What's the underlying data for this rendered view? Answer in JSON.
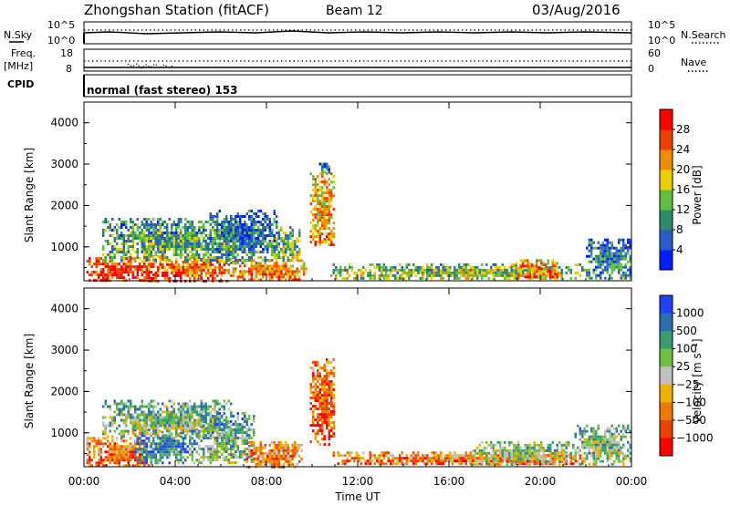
{
  "header": {
    "station": "Zhongshan Station (fitACF)",
    "beam": "Beam 12",
    "date": "03/Aug/2016"
  },
  "noise_panel": {
    "left_label": "N.Sky",
    "left_ticks": [
      "10^5",
      "10^0"
    ],
    "right_ticks": [
      "10^5",
      "10^0"
    ],
    "right_label": "N.Search"
  },
  "freq_panel": {
    "left_label_line1": "Freq.",
    "left_label_line2": "[MHz]",
    "left_ticks": [
      "18",
      "8"
    ],
    "right_ticks": [
      "60",
      "0"
    ],
    "right_label": "Nave"
  },
  "cpid": {
    "label": "CPID",
    "text": "normal (fast stereo) 153"
  },
  "chart_data": [
    {
      "type": "heatmap",
      "quantity": "Power",
      "x_range_hours": [
        0,
        24
      ],
      "y_range_km": [
        180,
        4500
      ],
      "ylabel": "Slant Range [km]",
      "yticks": [
        "1000",
        "2000",
        "3000",
        "4000"
      ],
      "colorbar": {
        "label": "Power [dB]",
        "ticks": [
          "4",
          "8",
          "12",
          "16",
          "20",
          "24",
          "28"
        ],
        "colors": [
          "#0020ff",
          "#2a5bc8",
          "#2f8a6a",
          "#60c040",
          "#e8d000",
          "#f08a00",
          "#f04000",
          "#ff0000"
        ],
        "range": [
          0,
          32
        ]
      },
      "regions": [
        {
          "x0": 0.1,
          "x1": 3.2,
          "y0": 200,
          "y1": 750,
          "level": 0.85
        },
        {
          "x0": 2.8,
          "x1": 6.6,
          "y0": 200,
          "y1": 800,
          "level": 0.75
        },
        {
          "x0": 0.8,
          "x1": 6.8,
          "y0": 700,
          "y1": 1700,
          "level": 0.35
        },
        {
          "x0": 5.5,
          "x1": 8.5,
          "y0": 600,
          "y1": 1900,
          "level": 0.25
        },
        {
          "x0": 6.5,
          "x1": 9.8,
          "y0": 200,
          "y1": 700,
          "level": 0.7
        },
        {
          "x0": 8.2,
          "x1": 9.5,
          "y0": 700,
          "y1": 1500,
          "level": 0.4
        },
        {
          "x0": 9.9,
          "x1": 11.0,
          "y0": 1000,
          "y1": 2800,
          "level": 0.65
        },
        {
          "x0": 10.3,
          "x1": 10.9,
          "y0": 2800,
          "y1": 3100,
          "level": 0.3
        },
        {
          "x0": 10.8,
          "x1": 22.0,
          "y0": 250,
          "y1": 600,
          "level": 0.45
        },
        {
          "x0": 18.8,
          "x1": 20.8,
          "y0": 250,
          "y1": 700,
          "level": 0.7
        },
        {
          "x0": 22.0,
          "x1": 24.0,
          "y0": 250,
          "y1": 1200,
          "level": 0.25
        }
      ]
    },
    {
      "type": "heatmap",
      "quantity": "Velocity",
      "x_range_hours": [
        0,
        24
      ],
      "y_range_km": [
        180,
        4500
      ],
      "ylabel": "Slant Range [km]",
      "yticks": [
        "1000",
        "2000",
        "3000",
        "4000"
      ],
      "xticks": [
        "00:00",
        "04:00",
        "08:00",
        "12:00",
        "16:00",
        "20:00",
        "00:00"
      ],
      "xlabel": "Time UT",
      "colorbar": {
        "label": "Velocity [m s⁻¹]",
        "ticks": [
          "1000",
          "500",
          "100",
          "25",
          "−25",
          "−100",
          "−500",
          "−1000"
        ],
        "colors": [
          "#2040ff",
          "#2a70b0",
          "#3a9a70",
          "#70c040",
          "#c0c0c0",
          "#f0b000",
          "#f07800",
          "#f04000",
          "#ff0000"
        ],
        "range": [
          -1000,
          1000
        ]
      },
      "regions": [
        {
          "x0": 0.1,
          "x1": 3.0,
          "y0": 200,
          "y1": 900,
          "level": 0.75
        },
        {
          "x0": 2.2,
          "x1": 5.0,
          "y0": 300,
          "y1": 1100,
          "level": 0.2
        },
        {
          "x0": 0.8,
          "x1": 6.5,
          "y0": 900,
          "y1": 1800,
          "level": 0.4
        },
        {
          "x0": 5.0,
          "x1": 7.5,
          "y0": 300,
          "y1": 1500,
          "level": 0.35
        },
        {
          "x0": 7.0,
          "x1": 9.6,
          "y0": 200,
          "y1": 800,
          "level": 0.7
        },
        {
          "x0": 9.9,
          "x1": 11.0,
          "y0": 700,
          "y1": 2800,
          "level": 0.8
        },
        {
          "x0": 10.8,
          "x1": 22.0,
          "y0": 250,
          "y1": 550,
          "level": 0.72
        },
        {
          "x0": 17.0,
          "x1": 21.5,
          "y0": 250,
          "y1": 800,
          "level": 0.45
        },
        {
          "x0": 21.5,
          "x1": 24.0,
          "y0": 250,
          "y1": 1200,
          "level": 0.4
        }
      ]
    }
  ]
}
